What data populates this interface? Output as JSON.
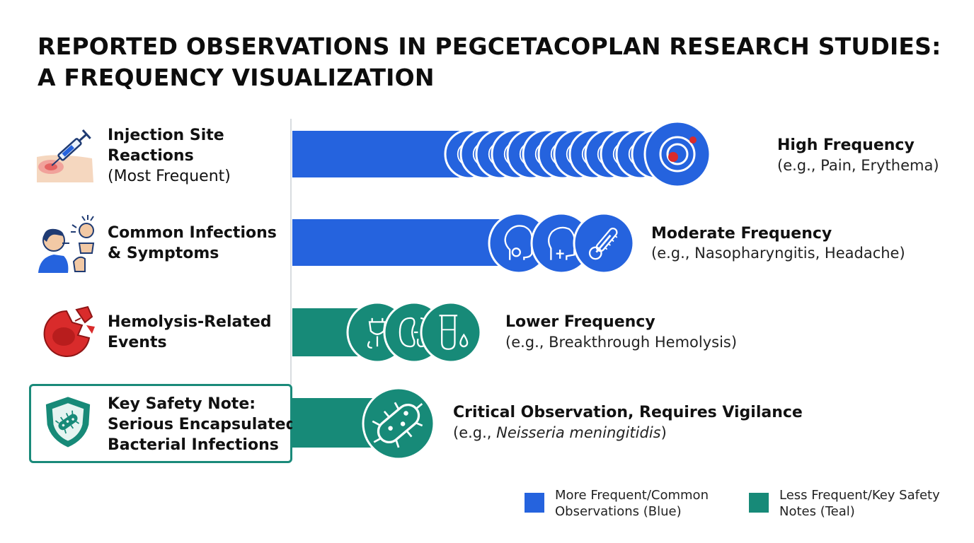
{
  "title": {
    "line1": "REPORTED OBSERVATIONS IN PEGCETACOPLAN RESEARCH STUDIES:",
    "line2": "A FREQUENCY VISUALIZATION"
  },
  "colors": {
    "blue": "#2563de",
    "teal": "#178a78",
    "red": "#d92b2b",
    "divider": "#d8dce0"
  },
  "chart_data": {
    "type": "bar",
    "orientation": "horizontal",
    "title": "REPORTED OBSERVATIONS IN PEGCETACOPLAN RESEARCH STUDIES: A FREQUENCY VISUALIZATION",
    "categories": [
      "Injection Site Reactions (Most Frequent)",
      "Common Infections & Symptoms",
      "Hemolysis-Related Events",
      "Key Safety Note: Serious Encapsulated Bacterial Infections"
    ],
    "values": [
      "High Frequency",
      "Moderate Frequency",
      "Lower Frequency",
      "Critical Observation, Requires Vigilance"
    ],
    "relative_level": [
      4,
      3,
      2,
      1
    ],
    "series_color": [
      "blue",
      "blue",
      "teal",
      "teal"
    ]
  },
  "rows": [
    {
      "label_bold_1": "Injection Site",
      "label_bold_2": "Reactions",
      "label_normal": "(Most Frequent)",
      "icon": "injection-icon",
      "color": "blue",
      "annotation_title": "High Frequency",
      "annotation_sub": "(e.g., Pain, Erythema)",
      "marker_icons": [
        "ring-icon",
        "ring-icon",
        "ring-icon",
        "ring-icon",
        "ring-icon",
        "ring-icon",
        "ring-icon",
        "ring-icon",
        "ring-icon",
        "ring-icon",
        "ring-icon",
        "ring-icon",
        "ring-icon",
        "injection-site-target-icon"
      ]
    },
    {
      "label_bold_1": "Common Infections",
      "label_bold_2": "& Symptoms",
      "icon": "coughing-person-icon",
      "color": "blue",
      "annotation_title": "Moderate Frequency",
      "annotation_sub": "(e.g., Nasopharyngitis, Headache)",
      "marker_icons": [
        "head-profile-icon",
        "throat-profile-icon",
        "thermometer-icon"
      ]
    },
    {
      "label_bold_1": "Hemolysis-Related",
      "label_bold_2": "Events",
      "icon": "broken-blood-cell-icon",
      "color": "teal",
      "annotation_title": "Lower Frequency",
      "annotation_sub": "(e.g., Breakthrough Hemolysis)",
      "marker_icons": [
        "urine-icon",
        "kidney-icon",
        "test-tube-drop-icon"
      ]
    },
    {
      "label_bold_1": "Key Safety Note:",
      "label_bold_2": "Serious Encapsulated",
      "label_bold_3": "Bacterial Infections",
      "icon": "shield-bacteria-icon",
      "color": "teal",
      "annotation_title": "Critical Observation, Requires Vigilance",
      "annotation_sub_prefix": "(e.g., ",
      "annotation_sub_italic": "Neisseria meningitidis",
      "annotation_sub_suffix": ")",
      "marker_icons": [
        "bacterium-icon"
      ]
    }
  ],
  "legend": [
    {
      "line1": "More Frequent/Common",
      "line2": "Observations (Blue)",
      "color": "blue"
    },
    {
      "line1": "Less Frequent/Key Safety",
      "line2": "Notes (Teal)",
      "color": "teal"
    }
  ]
}
